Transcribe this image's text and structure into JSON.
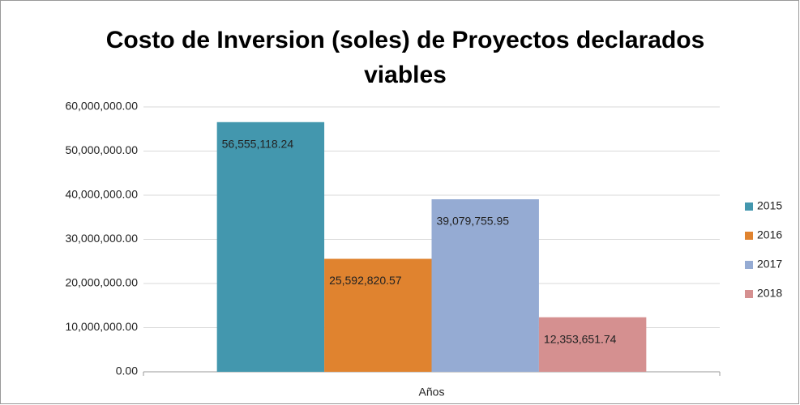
{
  "chart_data": {
    "type": "bar",
    "title": "Costo de Inversion (soles) de Proyectos declarados viables",
    "categories": [
      "Años"
    ],
    "series": [
      {
        "name": "2015",
        "color": "#4397ae",
        "values": [
          56555118.24
        ],
        "value_labels": [
          "56,555,118.24"
        ]
      },
      {
        "name": "2016",
        "color": "#e0832f",
        "values": [
          25592820.57
        ],
        "value_labels": [
          "25,592,820.57"
        ]
      },
      {
        "name": "2017",
        "color": "#95abd3",
        "values": [
          39079755.95
        ],
        "value_labels": [
          "39,079,755.95"
        ]
      },
      {
        "name": "2018",
        "color": "#d59090",
        "values": [
          12353651.74
        ],
        "value_labels": [
          "12,353,651.74"
        ]
      }
    ],
    "ylim": [
      0,
      60000000
    ],
    "yticks": [
      {
        "value": 0,
        "label": "0.00"
      },
      {
        "value": 10000000,
        "label": "10,000,000.00"
      },
      {
        "value": 20000000,
        "label": "20,000,000.00"
      },
      {
        "value": 30000000,
        "label": "30,000,000.00"
      },
      {
        "value": 40000000,
        "label": "40,000,000.00"
      },
      {
        "value": 50000000,
        "label": "50,000,000.00"
      },
      {
        "value": 60000000,
        "label": "60,000,000.00"
      }
    ],
    "grid": true,
    "legend": "right"
  }
}
